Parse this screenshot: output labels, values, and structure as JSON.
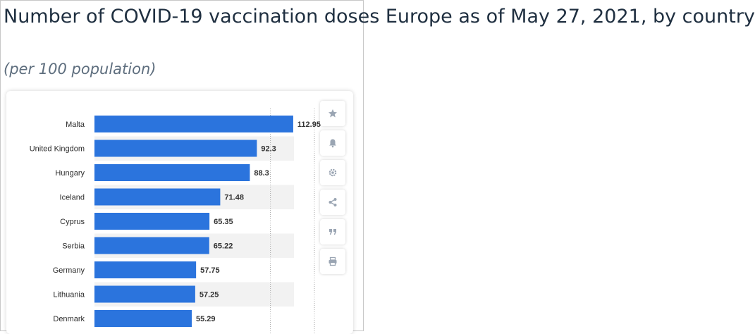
{
  "header": {
    "title": "Number of COVID-19 vaccination doses Europe as of May 27, 2021, by country",
    "subtitle": "(per 100 population)"
  },
  "colors": {
    "bar": "#2b74dd",
    "band": "#f2f2f2",
    "grid": "#a8a8a8",
    "label": "#2b2b2b",
    "icon": "#9aa5b3"
  },
  "toolbar": {
    "icons": [
      "star-icon",
      "bell-icon",
      "gear-icon",
      "share-icon",
      "quote-icon",
      "print-icon"
    ]
  },
  "chart_data": {
    "type": "bar",
    "orientation": "horizontal",
    "categories": [
      "Malta",
      "United Kingdom",
      "Hungary",
      "Iceland",
      "Cyprus",
      "Serbia",
      "Germany",
      "Lithuania",
      "Denmark"
    ],
    "values": [
      112.95,
      92.3,
      88.3,
      71.48,
      65.35,
      65.22,
      57.75,
      57.25,
      55.29
    ],
    "value_labels": [
      "112.95",
      "92.3",
      "88.3",
      "71.48",
      "65.35",
      "65.22",
      "57.75",
      "57.25",
      "55.29"
    ],
    "xlim": [
      0,
      125
    ],
    "gridlines": [
      100,
      125
    ],
    "grid": true,
    "alternating_bands": true,
    "title": "",
    "xlabel": "",
    "ylabel": ""
  }
}
